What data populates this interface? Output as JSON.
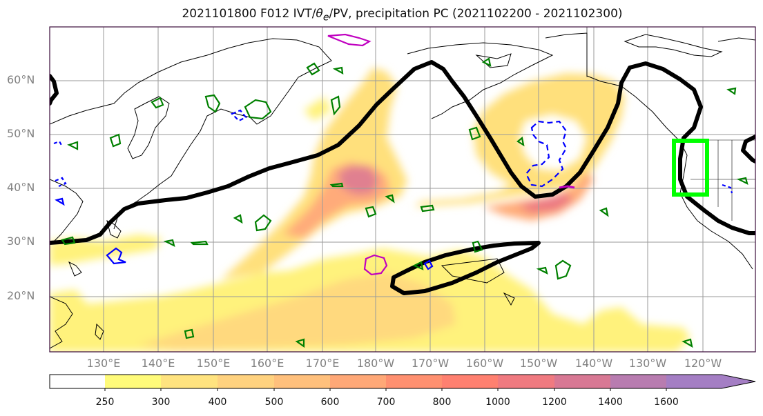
{
  "title": {
    "prefix": "2021101800 F012 IVT/",
    "theta_symbol": "θ",
    "theta_sub": "e",
    "suffix": "/PV, precipitation PC (2021102200 - 2021102300)"
  },
  "lat_labels": [
    "60°N",
    "50°N",
    "40°N",
    "30°N",
    "20°N"
  ],
  "lon_labels": [
    "130°E",
    "140°E",
    "150°E",
    "160°E",
    "170°E",
    "180°W",
    "170°W",
    "160°W",
    "150°W",
    "140°W",
    "130°W",
    "120°W"
  ],
  "colorbar": {
    "ticks": [
      "250",
      "300",
      "400",
      "500",
      "600",
      "700",
      "800",
      "1000",
      "1200",
      "1400",
      "1600"
    ],
    "colors": [
      "#ffffff",
      "#fffb7a",
      "#ffe37f",
      "#ffd27f",
      "#ffc07c",
      "#ffa877",
      "#ff9070",
      "#ff8070",
      "#f07a80",
      "#d87894",
      "#b87cb0",
      "#a47ec4"
    ]
  },
  "colors": {
    "theta_contour": "#000000",
    "pv_contour": "#008000",
    "negative_contour": "#0000ff",
    "magenta_contour": "#c000c0",
    "target_box": "#00ff00",
    "grid": "#9a9a9a",
    "coastline": "#000000"
  }
}
